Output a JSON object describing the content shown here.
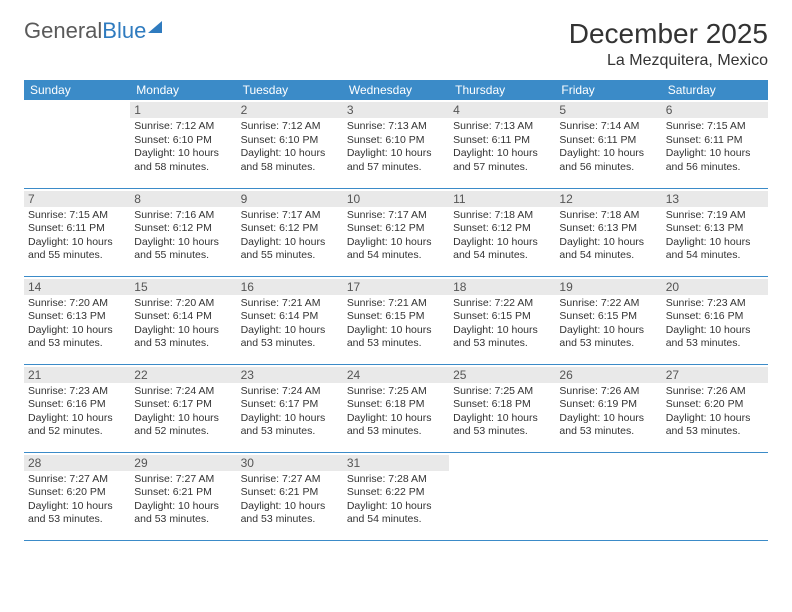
{
  "logo": {
    "part1": "General",
    "part2": "Blue"
  },
  "title": "December 2025",
  "location": "La Mezquitera, Mexico",
  "colors": {
    "header_bg": "#3b8bc8",
    "header_text": "#ffffff",
    "daynum_bg": "#e9e9e9",
    "border": "#3b8bc8",
    "text": "#333333",
    "logo_gray": "#5a5a5a",
    "logo_blue": "#2f7bbf",
    "background": "#ffffff"
  },
  "typography": {
    "title_fontsize": 28,
    "location_fontsize": 16,
    "weekday_fontsize": 12,
    "daynum_fontsize": 12,
    "info_fontsize": 10.5
  },
  "weekdays": [
    "Sunday",
    "Monday",
    "Tuesday",
    "Wednesday",
    "Thursday",
    "Friday",
    "Saturday"
  ],
  "first_weekday_offset": 1,
  "days": [
    {
      "n": 1,
      "sunrise": "7:12 AM",
      "sunset": "6:10 PM",
      "daylight": "10 hours and 58 minutes."
    },
    {
      "n": 2,
      "sunrise": "7:12 AM",
      "sunset": "6:10 PM",
      "daylight": "10 hours and 58 minutes."
    },
    {
      "n": 3,
      "sunrise": "7:13 AM",
      "sunset": "6:10 PM",
      "daylight": "10 hours and 57 minutes."
    },
    {
      "n": 4,
      "sunrise": "7:13 AM",
      "sunset": "6:11 PM",
      "daylight": "10 hours and 57 minutes."
    },
    {
      "n": 5,
      "sunrise": "7:14 AM",
      "sunset": "6:11 PM",
      "daylight": "10 hours and 56 minutes."
    },
    {
      "n": 6,
      "sunrise": "7:15 AM",
      "sunset": "6:11 PM",
      "daylight": "10 hours and 56 minutes."
    },
    {
      "n": 7,
      "sunrise": "7:15 AM",
      "sunset": "6:11 PM",
      "daylight": "10 hours and 55 minutes."
    },
    {
      "n": 8,
      "sunrise": "7:16 AM",
      "sunset": "6:12 PM",
      "daylight": "10 hours and 55 minutes."
    },
    {
      "n": 9,
      "sunrise": "7:17 AM",
      "sunset": "6:12 PM",
      "daylight": "10 hours and 55 minutes."
    },
    {
      "n": 10,
      "sunrise": "7:17 AM",
      "sunset": "6:12 PM",
      "daylight": "10 hours and 54 minutes."
    },
    {
      "n": 11,
      "sunrise": "7:18 AM",
      "sunset": "6:12 PM",
      "daylight": "10 hours and 54 minutes."
    },
    {
      "n": 12,
      "sunrise": "7:18 AM",
      "sunset": "6:13 PM",
      "daylight": "10 hours and 54 minutes."
    },
    {
      "n": 13,
      "sunrise": "7:19 AM",
      "sunset": "6:13 PM",
      "daylight": "10 hours and 54 minutes."
    },
    {
      "n": 14,
      "sunrise": "7:20 AM",
      "sunset": "6:13 PM",
      "daylight": "10 hours and 53 minutes."
    },
    {
      "n": 15,
      "sunrise": "7:20 AM",
      "sunset": "6:14 PM",
      "daylight": "10 hours and 53 minutes."
    },
    {
      "n": 16,
      "sunrise": "7:21 AM",
      "sunset": "6:14 PM",
      "daylight": "10 hours and 53 minutes."
    },
    {
      "n": 17,
      "sunrise": "7:21 AM",
      "sunset": "6:15 PM",
      "daylight": "10 hours and 53 minutes."
    },
    {
      "n": 18,
      "sunrise": "7:22 AM",
      "sunset": "6:15 PM",
      "daylight": "10 hours and 53 minutes."
    },
    {
      "n": 19,
      "sunrise": "7:22 AM",
      "sunset": "6:15 PM",
      "daylight": "10 hours and 53 minutes."
    },
    {
      "n": 20,
      "sunrise": "7:23 AM",
      "sunset": "6:16 PM",
      "daylight": "10 hours and 53 minutes."
    },
    {
      "n": 21,
      "sunrise": "7:23 AM",
      "sunset": "6:16 PM",
      "daylight": "10 hours and 52 minutes."
    },
    {
      "n": 22,
      "sunrise": "7:24 AM",
      "sunset": "6:17 PM",
      "daylight": "10 hours and 52 minutes."
    },
    {
      "n": 23,
      "sunrise": "7:24 AM",
      "sunset": "6:17 PM",
      "daylight": "10 hours and 53 minutes."
    },
    {
      "n": 24,
      "sunrise": "7:25 AM",
      "sunset": "6:18 PM",
      "daylight": "10 hours and 53 minutes."
    },
    {
      "n": 25,
      "sunrise": "7:25 AM",
      "sunset": "6:18 PM",
      "daylight": "10 hours and 53 minutes."
    },
    {
      "n": 26,
      "sunrise": "7:26 AM",
      "sunset": "6:19 PM",
      "daylight": "10 hours and 53 minutes."
    },
    {
      "n": 27,
      "sunrise": "7:26 AM",
      "sunset": "6:20 PM",
      "daylight": "10 hours and 53 minutes."
    },
    {
      "n": 28,
      "sunrise": "7:27 AM",
      "sunset": "6:20 PM",
      "daylight": "10 hours and 53 minutes."
    },
    {
      "n": 29,
      "sunrise": "7:27 AM",
      "sunset": "6:21 PM",
      "daylight": "10 hours and 53 minutes."
    },
    {
      "n": 30,
      "sunrise": "7:27 AM",
      "sunset": "6:21 PM",
      "daylight": "10 hours and 53 minutes."
    },
    {
      "n": 31,
      "sunrise": "7:28 AM",
      "sunset": "6:22 PM",
      "daylight": "10 hours and 54 minutes."
    }
  ],
  "labels": {
    "sunrise": "Sunrise:",
    "sunset": "Sunset:",
    "daylight": "Daylight:"
  }
}
